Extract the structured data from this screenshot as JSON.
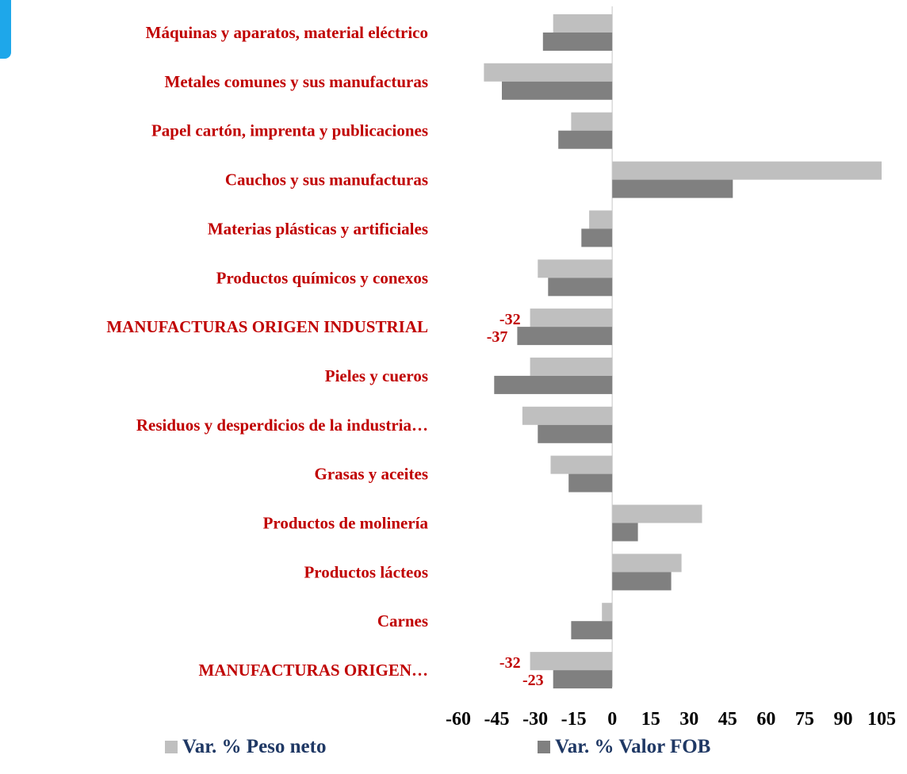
{
  "chart_data": {
    "type": "bar",
    "orientation": "horizontal",
    "categories": [
      "Máquinas y aparatos, material eléctrico",
      "Metales comunes y sus manufacturas",
      "Papel cartón, imprenta y publicaciones",
      "Cauchos y sus manufacturas",
      "Materias plásticas y artificiales",
      "Productos químicos y conexos",
      "MANUFACTURAS ORIGEN INDUSTRIAL",
      "Pieles y cueros",
      "Residuos y desperdicios de la industria…",
      "Grasas y aceites",
      "Productos de molinería",
      "Productos lácteos",
      "Carnes",
      "MANUFACTURAS ORIGEN…"
    ],
    "series": [
      {
        "name": "Var. % Peso neto",
        "color": "#bfbfbf",
        "values": [
          -23,
          -50,
          -16,
          105,
          -9,
          -29,
          -32,
          -32,
          -35,
          -24,
          35,
          27,
          -4,
          -32
        ]
      },
      {
        "name": "Var. % Valor FOB",
        "color": "#808080",
        "values": [
          -27,
          -43,
          -21,
          47,
          -12,
          -25,
          -37,
          -46,
          -29,
          -17,
          10,
          23,
          -16,
          -23
        ]
      }
    ],
    "data_labels": [
      {
        "category_index": 6,
        "series_index": 0,
        "text": "-32"
      },
      {
        "category_index": 6,
        "series_index": 1,
        "text": "-37"
      },
      {
        "category_index": 13,
        "series_index": 0,
        "text": "-32"
      },
      {
        "category_index": 13,
        "series_index": 1,
        "text": "-23"
      }
    ],
    "x_ticks": [
      "-60",
      "-45",
      "-30",
      "-15",
      "0",
      "15",
      "30",
      "45",
      "60",
      "75",
      "90",
      "105"
    ],
    "xlim": [
      -60,
      105
    ],
    "grid": false,
    "legend_position": "bottom"
  }
}
